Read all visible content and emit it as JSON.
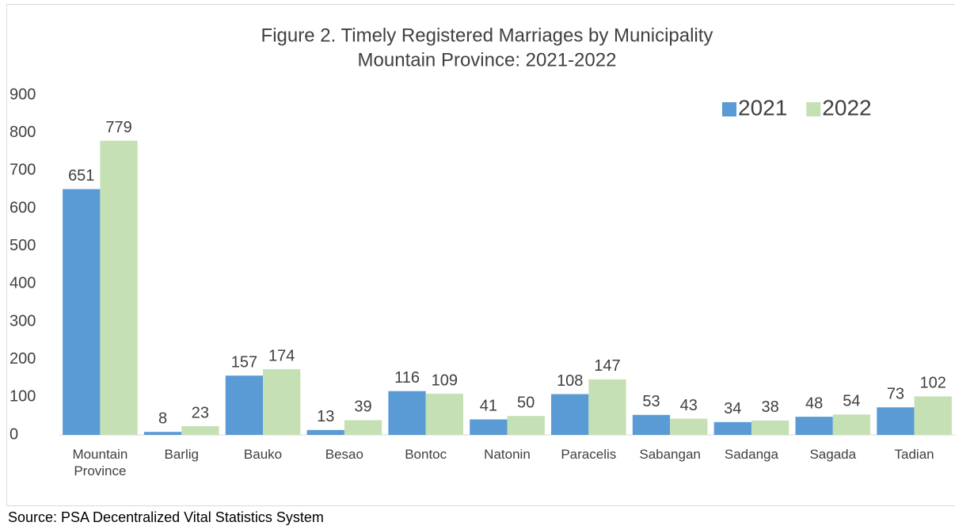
{
  "chart_data": {
    "type": "bar",
    "title": "Figure 2.  Timely Registered Marriages by Municipality",
    "subtitle": "Mountain Province: 2021-2022",
    "categories": [
      "Mountain Province",
      "Barlig",
      "Bauko",
      "Besao",
      "Bontoc",
      "Natonin",
      "Paracelis",
      "Sabangan",
      "Sadanga",
      "Sagada",
      "Tadian"
    ],
    "series": [
      {
        "name": "2021",
        "color": "#5b9bd5",
        "values": [
          651,
          8,
          157,
          13,
          116,
          41,
          108,
          53,
          34,
          48,
          73
        ]
      },
      {
        "name": "2022",
        "color": "#c5e0b4",
        "values": [
          779,
          23,
          174,
          39,
          109,
          50,
          147,
          43,
          38,
          54,
          102
        ]
      }
    ],
    "ylim": [
      0,
      900
    ],
    "yticks": [
      0,
      100,
      200,
      300,
      400,
      500,
      600,
      700,
      800,
      900
    ],
    "legend": "top-right",
    "source": "Source: PSA Decentralized Vital Statistics System"
  }
}
